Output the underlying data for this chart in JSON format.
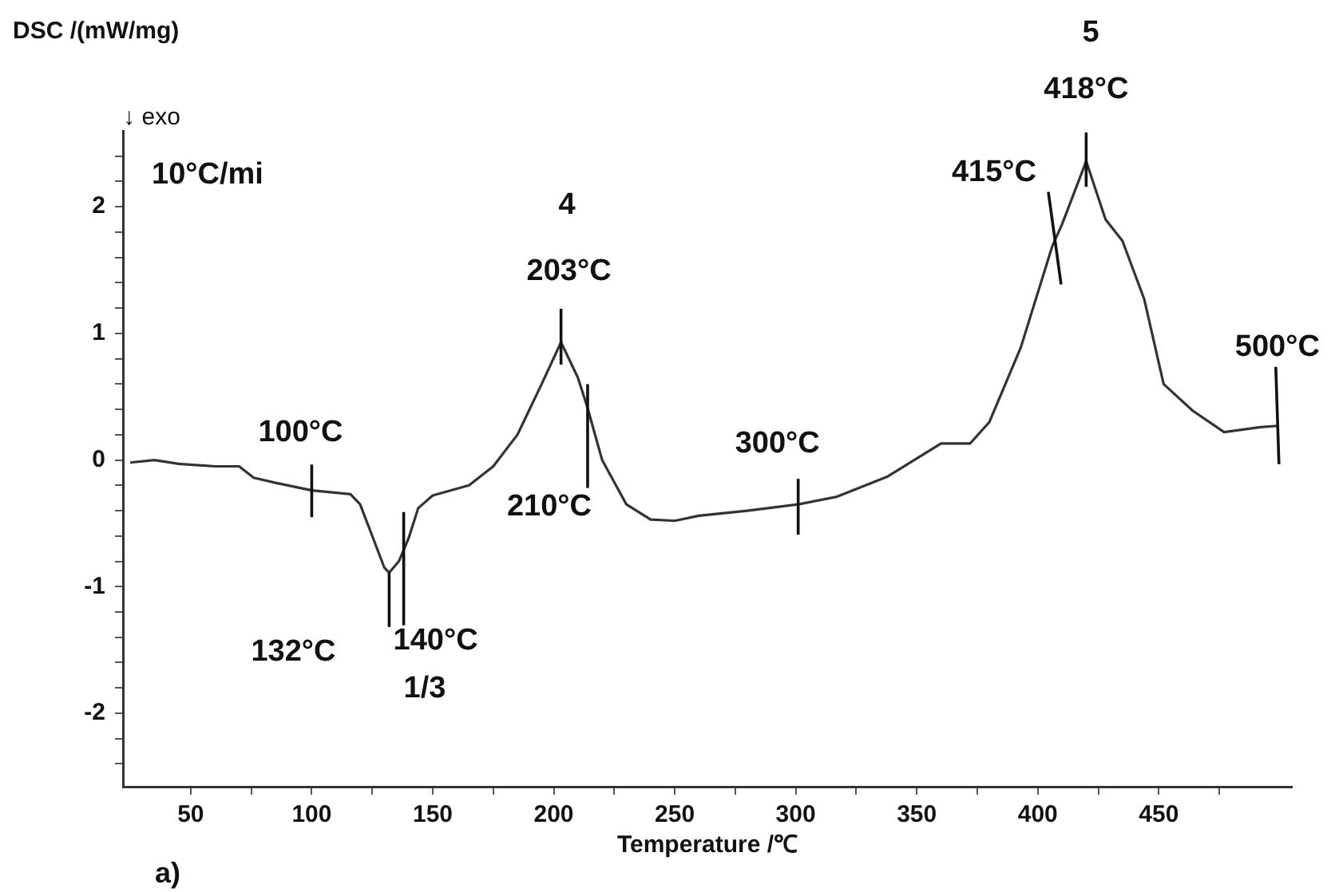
{
  "chart_data": {
    "type": "line",
    "ylabel": "DSC /(mW/mg)",
    "xlabel": "Temperature /℃",
    "x": [
      25,
      35,
      45,
      60,
      70,
      76,
      85,
      100,
      116,
      120,
      125,
      130,
      132,
      136,
      140,
      144,
      150,
      165,
      175,
      185,
      195,
      203,
      210,
      214,
      220,
      230,
      240,
      250,
      260,
      280,
      301,
      317,
      338,
      360,
      372,
      380,
      393,
      406,
      410,
      420,
      428,
      435,
      444,
      452,
      464,
      477,
      492,
      499
    ],
    "series": [
      {
        "color": "#333333",
        "values": [
          -0.02,
          0.0,
          -0.03,
          -0.05,
          -0.05,
          -0.14,
          -0.18,
          -0.24,
          -0.27,
          -0.35,
          -0.6,
          -0.85,
          -0.89,
          -0.8,
          -0.62,
          -0.38,
          -0.28,
          -0.2,
          -0.05,
          0.2,
          0.6,
          0.93,
          0.65,
          0.41,
          0.0,
          -0.35,
          -0.47,
          -0.48,
          -0.44,
          -0.4,
          -0.35,
          -0.29,
          -0.13,
          0.13,
          0.13,
          0.3,
          0.89,
          1.69,
          1.86,
          2.36,
          1.9,
          1.73,
          1.27,
          0.6,
          0.39,
          0.22,
          0.26,
          0.27
        ]
      }
    ],
    "xlim": [
      22,
      505
    ],
    "ylim": [
      -2.58,
      2.6
    ],
    "xticks": [
      50,
      {
        "value": 75,
        "label": null
      },
      100,
      {
        "value": 125,
        "label": null
      },
      150,
      {
        "value": 175,
        "label": null
      },
      200,
      {
        "value": 225,
        "label": null
      },
      250,
      {
        "value": 275,
        "label": null
      },
      300,
      {
        "value": 325,
        "label": null
      },
      350,
      {
        "value": 375,
        "label": null
      },
      400,
      {
        "value": 425,
        "label": null
      },
      450,
      {
        "value": 475,
        "label": null
      }
    ],
    "yticks": [
      {
        "value": -2.4,
        "label": null
      },
      {
        "value": -2.2,
        "label": null
      },
      -2,
      {
        "value": -1.8,
        "label": null
      },
      {
        "value": -1.6,
        "label": null
      },
      {
        "value": -1.4,
        "label": null
      },
      {
        "value": -1.2,
        "label": null
      },
      -1,
      {
        "value": -0.8,
        "label": null
      },
      {
        "value": -0.6,
        "label": null
      },
      {
        "value": -0.4,
        "label": null
      },
      {
        "value": -0.2,
        "label": null
      },
      0,
      {
        "value": 0.2,
        "label": null
      },
      {
        "value": 0.4,
        "label": null
      },
      {
        "value": 0.6,
        "label": null
      },
      {
        "value": 0.8,
        "label": null
      },
      1,
      {
        "value": 1.2,
        "label": null
      },
      {
        "value": 1.4,
        "label": null
      },
      {
        "value": 1.6,
        "label": null
      },
      {
        "value": 1.8,
        "label": null
      },
      2,
      {
        "value": 2.2,
        "label": null
      },
      {
        "value": 2.4,
        "label": null
      }
    ],
    "grid": false,
    "legend": false,
    "marker": "none",
    "line_style": "solid",
    "annotations": [
      "↓ exo",
      "10°C/mi",
      {
        "text": "100°C",
        "x": 100,
        "y": -0.25
      },
      {
        "text": "132°C",
        "x": 132,
        "y": -0.89
      },
      {
        "text": "140°C",
        "x": 138,
        "y": -0.7
      },
      "1/3",
      {
        "text": "203°C",
        "x": 203,
        "y": 0.93
      },
      "4",
      {
        "text": "210°C",
        "x": 214,
        "y": 0.41
      },
      {
        "text": "300°C",
        "x": 301,
        "y": -0.35
      },
      {
        "text": "415°C",
        "x": 407,
        "y": 1.69
      },
      {
        "text": "418°C",
        "x": 420,
        "y": 2.36
      },
      "5",
      {
        "text": "500°C",
        "x": 499,
        "y": 0.27
      },
      "a)"
    ]
  }
}
